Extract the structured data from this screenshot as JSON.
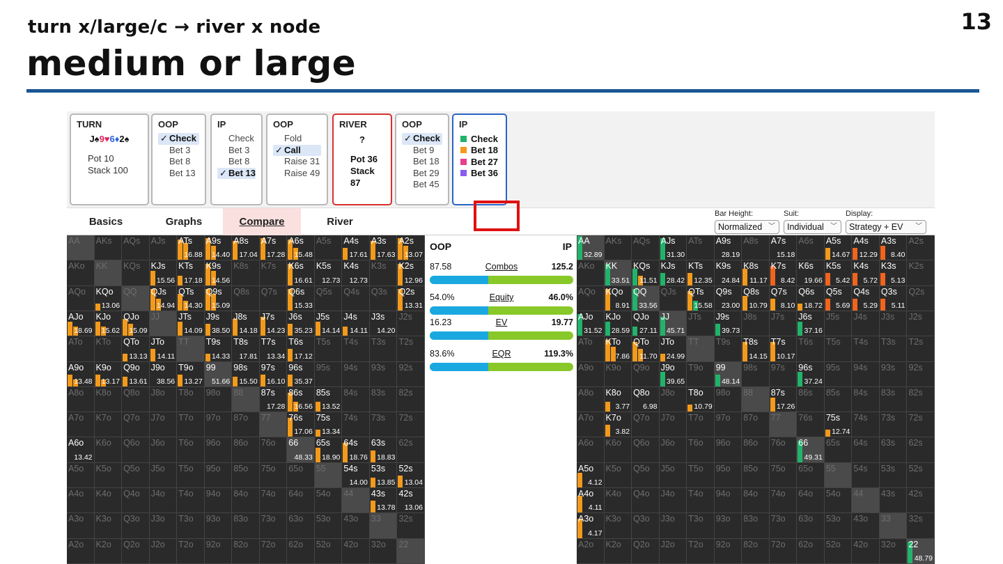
{
  "slide": {
    "number": "13",
    "subtitle": "turn x/large/c → river x node",
    "title": "medium or large"
  },
  "tree": {
    "turn": {
      "header": "TURN",
      "cards": "J♠9♥6♦2♠",
      "pot": "Pot 10",
      "stack": "Stack 100"
    },
    "oop1": {
      "header": "OOP",
      "options": [
        "Check",
        "Bet 3",
        "Bet 8",
        "Bet 13"
      ],
      "selected": 0
    },
    "ip1": {
      "header": "IP",
      "options": [
        "Check",
        "Bet 3",
        "Bet 8",
        "Bet 13"
      ],
      "selected": 3
    },
    "oop2": {
      "header": "OOP",
      "options": [
        "Fold",
        "Call",
        "Raise 31",
        "Raise 49"
      ],
      "selected": 1
    },
    "river": {
      "header": "RIVER",
      "card": "?",
      "pot": "Pot 36",
      "stack": "Stack 87"
    },
    "oop3": {
      "header": "OOP",
      "options": [
        "Check",
        "Bet 9",
        "Bet 18",
        "Bet 29",
        "Bet 45"
      ],
      "selected": 0
    },
    "ip2": {
      "header": "IP",
      "legend": [
        {
          "label": "Check",
          "color": "#21b36b"
        },
        {
          "label": "Bet 18",
          "color": "#f29a1c"
        },
        {
          "label": "Bet 27",
          "color": "#e83e8c"
        },
        {
          "label": "Bet 36",
          "color": "#8a5cf0"
        }
      ]
    }
  },
  "tabs": {
    "items": [
      "Basics",
      "Graphs",
      "Compare",
      "River"
    ],
    "active": 2
  },
  "controls": {
    "bar_height": {
      "label": "Bar Height:",
      "value": "Normalized"
    },
    "suit": {
      "label": "Suit:",
      "value": "Individual"
    },
    "display": {
      "label": "Display:",
      "value": "Strategy + EV"
    }
  },
  "compare": {
    "oop_label": "OOP",
    "ip_label": "IP",
    "rows": [
      {
        "name": "Combos",
        "oop": "87.58",
        "ip": "125.2",
        "oop_share": 0.41
      },
      {
        "name": "Equity",
        "oop": "54.0%",
        "ip": "46.0%",
        "oop_share": 0.41
      },
      {
        "name": "EV",
        "oop": "16.23",
        "ip": "19.77",
        "oop_share": 0.41
      },
      {
        "name": "EQR",
        "oop": "83.6%",
        "ip": "119.3%",
        "oop_share": 0.41
      }
    ]
  },
  "colors": {
    "oop_bar": "#f29a1c",
    "ip_check": "#21b36b",
    "ip_bet": "#f29a1c",
    "ip_bet_red": "#f0641e",
    "compare_oop": "#1aa8e0",
    "compare_ip": "#88c828",
    "highlight": "#e01010"
  },
  "grids": {
    "oop": {
      "cells": {
        "ATs": {
          "ev": "16.88",
          "bars": [
            [
              "o",
              0.85
            ],
            [
              "o",
              0.7
            ]
          ]
        },
        "A9s": {
          "ev": "14.40",
          "bars": [
            [
              "o",
              0.9
            ],
            [
              "o",
              0.6
            ]
          ]
        },
        "A8s": {
          "ev": "17.04",
          "bars": [
            [
              "o",
              0.8
            ]
          ]
        },
        "A7s": {
          "ev": "17.28",
          "bars": [
            [
              "o",
              0.9
            ]
          ]
        },
        "A6s": {
          "ev": "15.48",
          "bars": [
            [
              "o",
              0.85
            ],
            [
              "o",
              0.5
            ]
          ]
        },
        "A4s": {
          "ev": "17.61",
          "bars": [
            [
              "o",
              0.5
            ]
          ]
        },
        "A3s": {
          "ev": "17.63",
          "bars": [
            [
              "o",
              0.8
            ]
          ]
        },
        "A2s": {
          "ev": "13.07",
          "bars": [
            [
              "o",
              0.9
            ],
            [
              "o",
              0.6
            ]
          ]
        },
        "KJs": {
          "ev": "15.56",
          "bars": [
            [
              "o",
              0.6
            ]
          ]
        },
        "KTs": {
          "ev": "17.18",
          "bars": [
            [
              "o",
              0.4
            ]
          ]
        },
        "K9s": {
          "ev": "14.56",
          "bars": [
            [
              "o",
              0.9
            ],
            [
              "o",
              0.6
            ]
          ]
        },
        "K6s": {
          "ev": "16.61",
          "bars": [
            [
              "o",
              0.9
            ]
          ]
        },
        "K5s": {
          "ev": "12.73",
          "bars": []
        },
        "K4s": {
          "ev": "12.73",
          "bars": []
        },
        "K2s": {
          "ev": "12.96",
          "bars": [
            [
              "o",
              0.9
            ]
          ]
        },
        "KQo": {
          "ev": "13.06",
          "bars": [
            [
              "o",
              0.3
            ]
          ]
        },
        "QJs": {
          "ev": "14.94",
          "bars": [
            [
              "o",
              0.9
            ],
            [
              "o",
              0.5
            ]
          ]
        },
        "QTs": {
          "ev": "14.30",
          "bars": [
            [
              "o",
              0.7
            ],
            [
              "o",
              0.4
            ]
          ]
        },
        "Q9s": {
          "ev": "15.09",
          "bars": [
            [
              "o",
              0.9
            ],
            [
              "o",
              0.7
            ]
          ]
        },
        "Q6s": {
          "ev": "15.33",
          "bars": [
            [
              "o",
              0.9
            ]
          ]
        },
        "Q2s": {
          "ev": "13.31",
          "bars": [
            [
              "o",
              0.9
            ]
          ]
        },
        "AJo": {
          "ev": "18.69",
          "bars": [
            [
              "o",
              0.6
            ],
            [
              "o",
              0.4
            ]
          ]
        },
        "KJo": {
          "ev": "15.62",
          "bars": [
            [
              "o",
              0.6
            ],
            [
              "o",
              0.4
            ]
          ]
        },
        "QJo": {
          "ev": "15.09",
          "bars": [
            [
              "o",
              0.7
            ],
            [
              "o",
              0.5
            ]
          ]
        },
        "JTs": {
          "ev": "14.09",
          "bars": [
            [
              "o",
              0.6
            ]
          ]
        },
        "J9s": {
          "ev": "38.50",
          "bars": [
            [
              "o",
              0.5
            ]
          ]
        },
        "J8s": {
          "ev": "14.18",
          "bars": [
            [
              "o",
              0.7
            ]
          ]
        },
        "J7s": {
          "ev": "14.23",
          "bars": [
            [
              "o",
              0.8
            ]
          ]
        },
        "J6s": {
          "ev": "35.23",
          "bars": [
            [
              "o",
              0.5
            ]
          ]
        },
        "J5s": {
          "ev": "14.14",
          "bars": [
            [
              "o",
              0.6
            ]
          ]
        },
        "J4s": {
          "ev": "14.11",
          "bars": [
            [
              "o",
              0.4
            ]
          ]
        },
        "J3s": {
          "ev": "14.20",
          "bars": []
        },
        "QTo": {
          "ev": "13.13",
          "bars": [
            [
              "o",
              0.3
            ]
          ]
        },
        "JTo": {
          "ev": "14.11",
          "bars": [
            [
              "o",
              0.5
            ]
          ]
        },
        "T9s": {
          "ev": "14.33",
          "bars": [
            [
              "o",
              0.3
            ]
          ]
        },
        "T8s": {
          "ev": "17.81",
          "bars": []
        },
        "T7s": {
          "ev": "13.34",
          "bars": []
        },
        "T6s": {
          "ev": "17.12",
          "bars": [
            [
              "o",
              0.5
            ]
          ]
        },
        "A9o": {
          "ev": "13.48",
          "bars": [
            [
              "o",
              0.5
            ],
            [
              "o",
              0.3
            ]
          ]
        },
        "K9o": {
          "ev": "13.17",
          "bars": [
            [
              "o",
              0.5
            ],
            [
              "o",
              0.3
            ]
          ]
        },
        "Q9o": {
          "ev": "13.61",
          "bars": [
            [
              "o",
              0.4
            ]
          ]
        },
        "J9o": {
          "ev": "38.56",
          "bars": []
        },
        "T9o": {
          "ev": "13.27",
          "bars": [
            [
              "o",
              0.5
            ]
          ]
        },
        "99": {
          "ev": "51.66",
          "bars": []
        },
        "98s": {
          "ev": "15.50",
          "bars": [
            [
              "o",
              0.4
            ]
          ]
        },
        "97s": {
          "ev": "16.10",
          "bars": [
            [
              "o",
              0.5
            ]
          ]
        },
        "96s": {
          "ev": "35.37",
          "bars": [
            [
              "o",
              0.5
            ]
          ]
        },
        "87s": {
          "ev": "17.28",
          "bars": []
        },
        "86s": {
          "ev": "16.56",
          "bars": [
            [
              "o",
              0.8
            ],
            [
              "o",
              0.4
            ]
          ]
        },
        "85s": {
          "ev": "13.52",
          "bars": [
            [
              "o",
              0.4
            ]
          ]
        },
        "76s": {
          "ev": "17.06",
          "bars": [
            [
              "o",
              0.8
            ]
          ]
        },
        "75s": {
          "ev": "13.34",
          "bars": [
            [
              "o",
              0.3
            ]
          ]
        },
        "A6o": {
          "ev": "13.42",
          "bars": []
        },
        "66": {
          "ev": "48.33",
          "bars": []
        },
        "65s": {
          "ev": "18.90",
          "bars": [
            [
              "o",
              0.6
            ]
          ]
        },
        "64s": {
          "ev": "18.76",
          "bars": [
            [
              "o",
              0.8
            ]
          ]
        },
        "63s": {
          "ev": "18.83",
          "bars": [
            [
              "o",
              0.5
            ]
          ]
        },
        "54s": {
          "ev": "14.00",
          "bars": []
        },
        "53s": {
          "ev": "13.85",
          "bars": [
            [
              "o",
              0.4
            ]
          ]
        },
        "52s": {
          "ev": "13.04",
          "bars": [
            [
              "o",
              0.5
            ]
          ]
        },
        "43s": {
          "ev": "13.78",
          "bars": [
            [
              "o",
              0.5
            ]
          ]
        },
        "42s": {
          "ev": "13.06",
          "bars": []
        }
      }
    },
    "ip": {
      "cells": {
        "AA": {
          "ev": "32.89",
          "bars": [
            [
              "g",
              1.0
            ]
          ]
        },
        "AJs": {
          "ev": "31.30",
          "bars": [
            [
              "g",
              0.9
            ]
          ]
        },
        "A9s": {
          "ev": "28.19",
          "bars": []
        },
        "A7s": {
          "ev": "15.18",
          "bars": []
        },
        "A5s": {
          "ev": "14.67",
          "bars": [
            [
              "o",
              0.5
            ]
          ]
        },
        "A4s": {
          "ev": "12.29",
          "bars": [
            [
              "r",
              0.5
            ]
          ]
        },
        "A3s": {
          "ev": "8.40",
          "bars": [
            [
              "r",
              0.6
            ]
          ]
        },
        "KK": {
          "ev": "33.51",
          "bars": [
            [
              "g",
              0.9
            ]
          ]
        },
        "KQs": {
          "ev": "11.51",
          "bars": [
            [
              "g",
              0.7
            ],
            [
              "o",
              0.4
            ]
          ]
        },
        "KJs": {
          "ev": "28.42",
          "bars": [
            [
              "g",
              0.5
            ]
          ]
        },
        "KTs": {
          "ev": "12.35",
          "bars": [
            [
              "o",
              0.5
            ]
          ]
        },
        "K9s": {
          "ev": "24.84",
          "bars": []
        },
        "K8s": {
          "ev": "11.17",
          "bars": [
            [
              "o",
              0.7
            ]
          ]
        },
        "K7s": {
          "ev": "8.42",
          "bars": [
            [
              "r",
              0.8
            ]
          ]
        },
        "K6s": {
          "ev": "19.66",
          "bars": []
        },
        "K5s": {
          "ev": "5.42",
          "bars": [
            [
              "r",
              0.5
            ]
          ]
        },
        "K4s": {
          "ev": "5.72",
          "bars": [
            [
              "r",
              0.5
            ]
          ]
        },
        "K3s": {
          "ev": "5.13",
          "bars": [
            [
              "r",
              0.5
            ]
          ]
        },
        "KQo": {
          "ev": "8.91",
          "bars": [
            [
              "o",
              0.9
            ]
          ]
        },
        "QQ": {
          "ev": "33.56",
          "bars": [
            [
              "g",
              0.9
            ]
          ]
        },
        "QTs": {
          "ev": "15.58",
          "bars": [
            [
              "o",
              0.8
            ],
            [
              "g",
              0.4
            ]
          ]
        },
        "Q9s": {
          "ev": "23.00",
          "bars": []
        },
        "Q8s": {
          "ev": "10.79",
          "bars": [
            [
              "o",
              0.6
            ]
          ]
        },
        "Q7s": {
          "ev": "8.10",
          "bars": [
            [
              "o",
              0.5
            ]
          ]
        },
        "Q6s": {
          "ev": "18.72",
          "bars": [
            [
              "o",
              0.3
            ]
          ]
        },
        "Q5s": {
          "ev": "5.69",
          "bars": [
            [
              "r",
              0.5
            ]
          ]
        },
        "Q4s": {
          "ev": "5.29",
          "bars": [
            [
              "r",
              0.5
            ]
          ]
        },
        "Q3s": {
          "ev": "5.11",
          "bars": [
            [
              "r",
              0.5
            ]
          ]
        },
        "AJo": {
          "ev": "31.52",
          "bars": [
            [
              "g",
              0.9
            ]
          ]
        },
        "KJo": {
          "ev": "28.59",
          "bars": [
            [
              "g",
              0.6
            ]
          ]
        },
        "QJo": {
          "ev": "27.11",
          "bars": [
            [
              "g",
              0.4
            ]
          ]
        },
        "JJ": {
          "ev": "45.71",
          "bars": [
            [
              "g",
              0.8
            ]
          ]
        },
        "J9s": {
          "ev": "39.73",
          "bars": [
            [
              "g",
              0.5
            ]
          ]
        },
        "J6s": {
          "ev": "37.16",
          "bars": [
            [
              "g",
              0.6
            ]
          ]
        },
        "KTo": {
          "ev": "7.86",
          "bars": [
            [
              "o",
              0.9
            ],
            [
              "o",
              0.6
            ]
          ]
        },
        "QTo": {
          "ev": "11.70",
          "bars": [
            [
              "o",
              0.8
            ],
            [
              "o",
              0.5
            ]
          ]
        },
        "JTo": {
          "ev": "24.99",
          "bars": [
            [
              "o",
              0.3
            ]
          ]
        },
        "T8s": {
          "ev": "14.15",
          "bars": [
            [
              "o",
              0.8
            ]
          ]
        },
        "T7s": {
          "ev": "10.17",
          "bars": [
            [
              "o",
              0.8
            ]
          ]
        },
        "J9o": {
          "ev": "39.65",
          "bars": [
            [
              "g",
              0.6
            ]
          ]
        },
        "99": {
          "ev": "48.14",
          "bars": [
            [
              "g",
              0.5
            ]
          ]
        },
        "96s": {
          "ev": "37.24",
          "bars": [
            [
              "g",
              0.6
            ]
          ]
        },
        "K8o": {
          "ev": "3.77",
          "bars": [
            [
              "o",
              0.4
            ]
          ]
        },
        "Q8o": {
          "ev": "6.98",
          "bars": []
        },
        "T8o": {
          "ev": "10.79",
          "bars": [
            [
              "o",
              0.3
            ]
          ]
        },
        "87s": {
          "ev": "17.26",
          "bars": [
            [
              "o",
              0.6
            ]
          ]
        },
        "K7o": {
          "ev": "3.82",
          "bars": [
            [
              "o",
              0.5
            ]
          ]
        },
        "75s": {
          "ev": "12.74",
          "bars": [
            [
              "o",
              0.3
            ]
          ]
        },
        "66": {
          "ev": "49.31",
          "bars": [
            [
              "g",
              0.9
            ]
          ]
        },
        "A5o": {
          "ev": "4.12",
          "bars": [
            [
              "o",
              0.6
            ]
          ]
        },
        "A4o": {
          "ev": "4.11",
          "bars": [
            [
              "o",
              0.7
            ]
          ]
        },
        "A3o": {
          "ev": "4.17",
          "bars": [
            [
              "o",
              0.8
            ]
          ]
        },
        "22": {
          "ev": "48.79",
          "bars": [
            [
              "g",
              0.9
            ]
          ]
        }
      }
    }
  }
}
